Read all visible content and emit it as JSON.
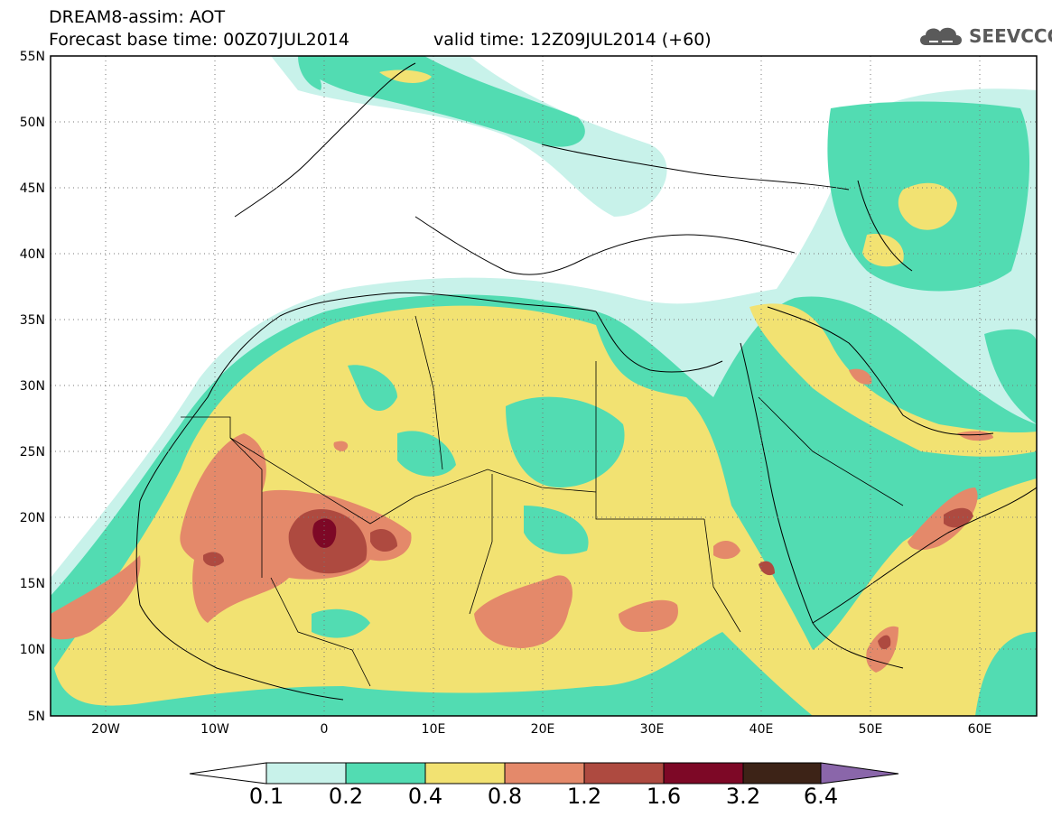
{
  "title": {
    "line1": "DREAM8-assim: AOT",
    "base_time": "Forecast base time: 00Z07JUL2014",
    "valid_time": "valid time: 12Z09JUL2014 (+60)"
  },
  "logo": {
    "text": "SEEVCCC",
    "icon": "cloud-icon"
  },
  "map": {
    "variable": "AOT",
    "lon_range": [
      -25,
      65
    ],
    "lat_range": [
      5,
      55
    ],
    "grid": "dotted",
    "lat_ticks": [
      "55N",
      "50N",
      "45N",
      "40N",
      "35N",
      "30N",
      "25N",
      "20N",
      "15N",
      "10N",
      "5N"
    ],
    "lon_ticks": [
      "20W",
      "10W",
      "0",
      "10E",
      "20E",
      "30E",
      "40E",
      "50E",
      "60E"
    ]
  },
  "colorbar": {
    "levels": [
      "0.1",
      "0.2",
      "0.4",
      "0.8",
      "1.2",
      "1.6",
      "3.2",
      "6.4"
    ],
    "colors": [
      "#ffffff",
      "#c8f2ea",
      "#52dcb2",
      "#f2e272",
      "#e4896a",
      "#ae4a40",
      "#7d0826",
      "#3d2317",
      "#8a66aa"
    ]
  }
}
